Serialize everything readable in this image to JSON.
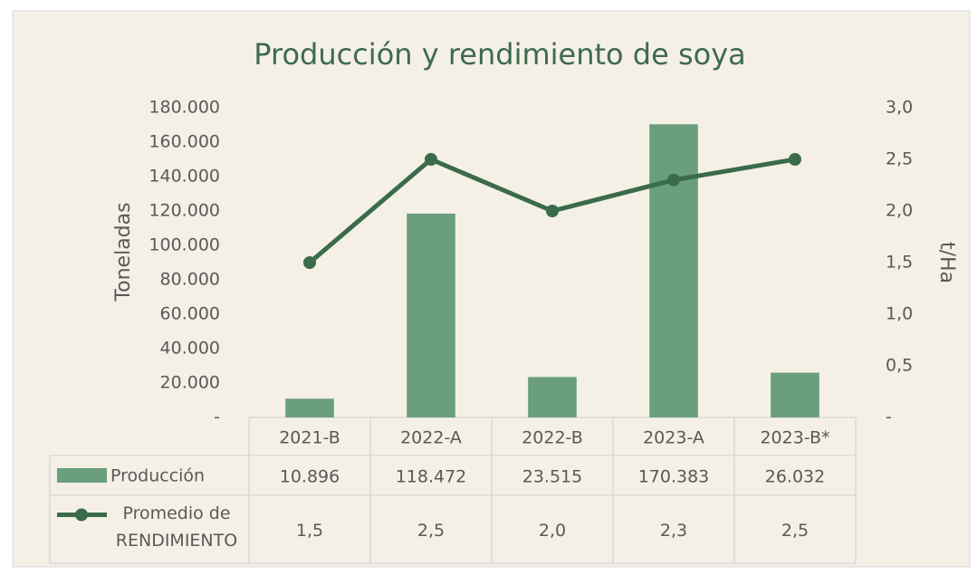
{
  "chart_data": {
    "type": "bar",
    "title": "Producción y rendimiento de soya",
    "y_label": "Toneladas",
    "y2_label": "t/Ha",
    "categories": [
      "2021-B",
      "2022-A",
      "2022-B",
      "2023-A",
      "2023-B*"
    ],
    "series": [
      {
        "name": "Producción",
        "type": "bar",
        "color": "#6a9e7c",
        "values": [
          10896,
          118472,
          23515,
          170383,
          26032
        ],
        "value_labels": [
          "10.896",
          "118.472",
          "23.515",
          "170.383",
          "26.032"
        ]
      },
      {
        "name": "Promedio de RENDIMIENTO",
        "type": "line",
        "axis": "y2",
        "color": "#3a6b4b",
        "values": [
          1.5,
          2.5,
          2.0,
          2.3,
          2.5
        ],
        "value_labels": [
          "1,5",
          "2,5",
          "2,0",
          "2,3",
          "2,5"
        ]
      }
    ],
    "ylim": [
      0,
      180000
    ],
    "yticks": [
      {
        "value": 0,
        "label": "-"
      },
      {
        "value": 20000,
        "label": "20.000"
      },
      {
        "value": 40000,
        "label": "40.000"
      },
      {
        "value": 60000,
        "label": "60.000"
      },
      {
        "value": 80000,
        "label": "80.000"
      },
      {
        "value": 100000,
        "label": "100.000"
      },
      {
        "value": 120000,
        "label": "120.000"
      },
      {
        "value": 140000,
        "label": "140.000"
      },
      {
        "value": 160000,
        "label": "160.000"
      },
      {
        "value": 180000,
        "label": "180.000"
      }
    ],
    "y2lim": [
      0,
      3
    ],
    "y2ticks": [
      {
        "value": 0,
        "label": "-"
      },
      {
        "value": 0.5,
        "label": "0,5"
      },
      {
        "value": 1,
        "label": "1,0"
      },
      {
        "value": 1.5,
        "label": "1,5"
      },
      {
        "value": 2,
        "label": "2,0"
      },
      {
        "value": 2.5,
        "label": "2,5"
      },
      {
        "value": 3,
        "label": "3,0"
      }
    ]
  }
}
